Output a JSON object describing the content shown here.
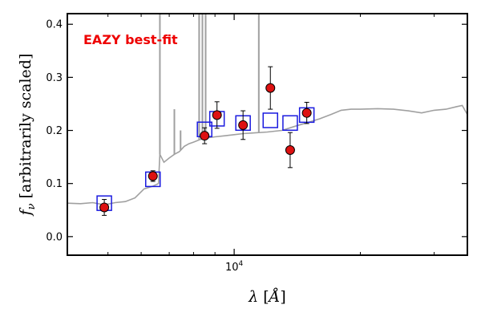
{
  "chart_data": {
    "type": "scatter",
    "xscale": "log",
    "xlim": [
      4000,
      36000
    ],
    "ylim": [
      -0.035,
      0.42
    ],
    "yticks": [
      0.0,
      0.1,
      0.2,
      0.3,
      0.4
    ],
    "ytick_labels": [
      "0.0",
      "0.1",
      "0.2",
      "0.3",
      "0.4"
    ],
    "xticks": [
      10000
    ],
    "xtick_label_base": "10",
    "xtick_label_exp": "4",
    "ylabel_symbol": "f",
    "ylabel_sub": "ν",
    "ylabel_text": " [arbitrarily scaled]",
    "xlabel_symbol": "λ",
    "xlabel_unit": "Å",
    "annotation": "EAZY best-fit",
    "grid": false,
    "colors": {
      "template": "#a0a0a0",
      "observed_fill": "#dd1111",
      "model_box": "#1a1adf",
      "annotation": "#ee0000"
    },
    "series": [
      {
        "marker": "circle",
        "points": [
          {
            "x": 4900,
            "y": 0.055,
            "err": 0.015
          },
          {
            "x": 6400,
            "y": 0.114,
            "err": 0.01
          },
          {
            "x": 8500,
            "y": 0.19,
            "err": 0.015
          },
          {
            "x": 9100,
            "y": 0.229,
            "err": 0.025
          },
          {
            "x": 10500,
            "y": 0.21,
            "err": 0.027
          },
          {
            "x": 12200,
            "y": 0.28,
            "err": 0.04
          },
          {
            "x": 13600,
            "y": 0.163,
            "err": 0.033
          },
          {
            "x": 14900,
            "y": 0.233,
            "err": 0.02
          }
        ]
      },
      {
        "marker": "square",
        "points": [
          {
            "x": 4900,
            "y": 0.063
          },
          {
            "x": 6400,
            "y": 0.108
          },
          {
            "x": 8500,
            "y": 0.202
          },
          {
            "x": 9100,
            "y": 0.222
          },
          {
            "x": 10500,
            "y": 0.214
          },
          {
            "x": 12200,
            "y": 0.219
          },
          {
            "x": 13600,
            "y": 0.214
          },
          {
            "x": 14900,
            "y": 0.229
          }
        ]
      },
      {
        "type": "line",
        "points": [
          [
            4000,
            0.063
          ],
          [
            4300,
            0.062
          ],
          [
            4600,
            0.064
          ],
          [
            4900,
            0.06
          ],
          [
            5200,
            0.064
          ],
          [
            5500,
            0.066
          ],
          [
            5800,
            0.073
          ],
          [
            6100,
            0.09
          ],
          [
            6400,
            0.095
          ],
          [
            6600,
            0.1
          ],
          [
            6650,
            0.155
          ],
          [
            6800,
            0.14
          ],
          [
            7000,
            0.148
          ],
          [
            7200,
            0.155
          ],
          [
            7400,
            0.16
          ],
          [
            7600,
            0.17
          ],
          [
            7800,
            0.175
          ],
          [
            8000,
            0.178
          ],
          [
            8300,
            0.183
          ],
          [
            8600,
            0.186
          ],
          [
            9000,
            0.188
          ],
          [
            9500,
            0.19
          ],
          [
            10000,
            0.192
          ],
          [
            10500,
            0.194
          ],
          [
            11000,
            0.195
          ],
          [
            12000,
            0.197
          ],
          [
            13000,
            0.2
          ],
          [
            14000,
            0.208
          ],
          [
            15000,
            0.215
          ],
          [
            16000,
            0.222
          ],
          [
            17000,
            0.23
          ],
          [
            18000,
            0.238
          ],
          [
            19000,
            0.24
          ],
          [
            20000,
            0.24
          ],
          [
            22000,
            0.241
          ],
          [
            24000,
            0.24
          ],
          [
            26000,
            0.237
          ],
          [
            28000,
            0.233
          ],
          [
            30000,
            0.238
          ],
          [
            32000,
            0.24
          ],
          [
            34000,
            0.245
          ],
          [
            35000,
            0.247
          ],
          [
            36000,
            0.23
          ]
        ]
      },
      {
        "type": "emission_lines",
        "points": [
          [
            6650,
            0.42
          ],
          [
            7200,
            0.24
          ],
          [
            7450,
            0.2
          ],
          [
            8250,
            0.42
          ],
          [
            8400,
            0.42
          ],
          [
            8550,
            0.42
          ],
          [
            11450,
            0.42
          ]
        ]
      }
    ]
  }
}
